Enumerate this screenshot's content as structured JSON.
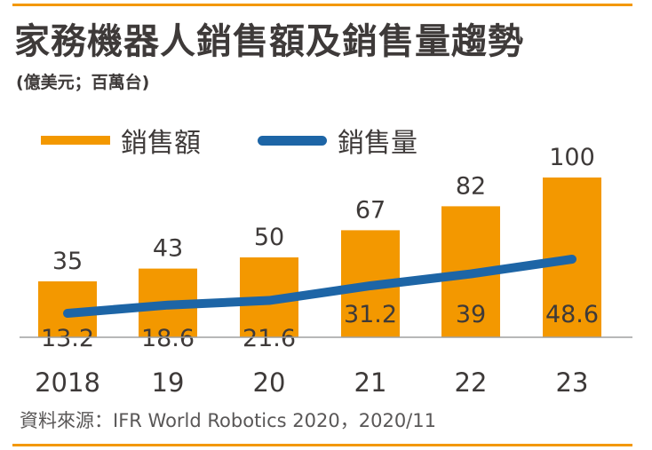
{
  "title": "家務機器人銷售額及銷售量趨勢",
  "subtitle": "(億美元；百萬台)",
  "source": "資料來源：IFR World Robotics 2020，2020/11",
  "colors": {
    "bar": "#f39800",
    "line": "#1d65a6",
    "text": "#3e3a39",
    "rule": "#f39800"
  },
  "chart_data": {
    "type": "bar",
    "categories": [
      "2018",
      "19",
      "20",
      "21",
      "22",
      "23"
    ],
    "series": [
      {
        "name": "銷售額",
        "type": "bar",
        "values": [
          35,
          43,
          50,
          67,
          82,
          100
        ],
        "color": "#f39800"
      },
      {
        "name": "銷售量",
        "type": "line",
        "values": [
          13.2,
          18.6,
          21.6,
          31.2,
          39,
          48.6
        ],
        "color": "#1d65a6"
      }
    ],
    "legend": [
      "銷售額",
      "銷售量"
    ],
    "legend_position": "top-left",
    "grid": false
  }
}
